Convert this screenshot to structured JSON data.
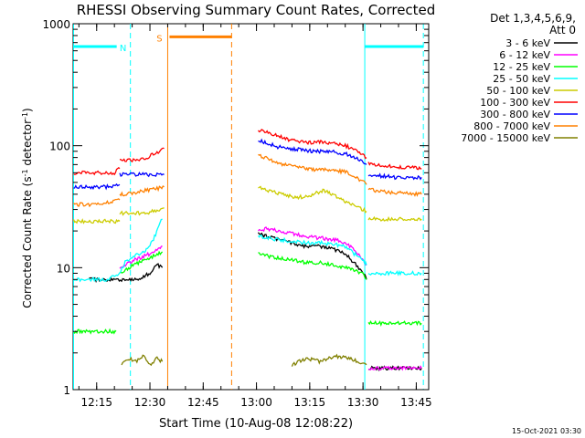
{
  "chart_data": {
    "type": "line",
    "title": "RHESSI Observing Summary Count Rates, Corrected",
    "xlabel": "Start Time (10-Aug-08 12:08:22)",
    "ylabel_main": "Corrected Count Rate (s",
    "ylabel_sup1": "-1",
    "ylabel_mid": " detector",
    "ylabel_sup2": "-1",
    "ylabel_end": ")",
    "y_scale": "log",
    "ylim": [
      1,
      1000
    ],
    "x_start_minutes": 8.37,
    "x_end_minutes": 108.5,
    "x_ticks": [
      {
        "minutes": 15,
        "label": "12:15"
      },
      {
        "minutes": 30,
        "label": "12:30"
      },
      {
        "minutes": 45,
        "label": "12:45"
      },
      {
        "minutes": 60,
        "label": "13:00"
      },
      {
        "minutes": 75,
        "label": "13:15"
      },
      {
        "minutes": 90,
        "label": "13:30"
      },
      {
        "minutes": 105,
        "label": "13:45"
      }
    ],
    "y_ticks": [
      {
        "value": 1,
        "label": "1"
      },
      {
        "value": 10,
        "label": "10"
      },
      {
        "value": 100,
        "label": "100"
      },
      {
        "value": 1000,
        "label": "1000"
      }
    ],
    "legend": {
      "header1": "Det 1,3,4,5,6,9,",
      "header2": "Att 0",
      "placement": "right"
    },
    "series": [
      {
        "name": "3 - 6 keV",
        "color": "#000000",
        "segments": [
          {
            "x": [
              12.9,
              13.5,
              14.5,
              15.5,
              17.0,
              18.5,
              22.0,
              24.0,
              27.0,
              30.0,
              32.0,
              33.5
            ],
            "y": [
              8.0,
              8.0,
              8.0,
              8.0,
              8.0,
              8.0,
              8.0,
              8.0,
              8.0,
              9.0,
              10.5,
              10.0
            ]
          },
          {
            "x": [
              60.5,
              63.0,
              66.0,
              70.0,
              74.0,
              78.0,
              82.0,
              85.0,
              87.5,
              89.5,
              90.5,
              91.0
            ],
            "y": [
              19.0,
              18.0,
              17.0,
              16.0,
              15.0,
              15.0,
              14.0,
              13.0,
              11.0,
              9.5,
              9.0,
              8.0
            ]
          },
          {
            "x": [
              91.5,
              93.5,
              96.0,
              99.0,
              102.0,
              104.0,
              106.5
            ],
            "y": [
              1.5,
              1.5,
              1.5,
              1.5,
              1.5,
              1.5,
              1.5
            ]
          }
        ]
      },
      {
        "name": "6 - 12 keV",
        "color": "#ff00ff",
        "segments": [
          {
            "x": [
              21.5,
              24.0,
              27.0,
              30.0,
              32.0,
              33.5
            ],
            "y": [
              10.0,
              11.0,
              12.0,
              13.0,
              14.0,
              15.0
            ]
          },
          {
            "x": [
              60.5,
              63.0,
              66.0,
              70.0,
              74.0,
              78.0,
              82.0,
              85.0,
              87.5,
              89.5,
              90.5,
              91.0
            ],
            "y": [
              20.0,
              21.0,
              20.0,
              19.0,
              18.0,
              17.5,
              17.0,
              16.0,
              14.0,
              12.0,
              11.0,
              10.5
            ]
          },
          {
            "x": [
              91.5,
              93.5,
              96.0,
              99.0,
              102.0,
              104.0,
              106.5
            ],
            "y": [
              1.5,
              1.5,
              1.5,
              1.5,
              1.5,
              1.5,
              1.5
            ]
          }
        ]
      },
      {
        "name": "12 - 25 keV",
        "color": "#00ff00",
        "segments": [
          {
            "x": [
              8.5,
              10.0,
              11.5,
              13.0,
              14.5,
              16.0,
              17.5,
              19.0,
              20.5
            ],
            "y": [
              3.0,
              3.0,
              3.0,
              3.0,
              3.0,
              3.0,
              3.0,
              3.0,
              3.0
            ]
          },
          {
            "x": [
              21.5,
              24.0,
              27.0,
              30.0,
              32.0,
              33.5
            ],
            "y": [
              9.0,
              10.0,
              11.0,
              12.0,
              13.0,
              13.5
            ]
          },
          {
            "x": [
              60.5,
              63.0,
              66.0,
              70.0,
              74.0,
              78.0,
              82.0,
              85.0,
              87.5,
              89.5,
              90.5,
              91.0
            ],
            "y": [
              13.0,
              12.5,
              12.0,
              11.5,
              11.0,
              11.0,
              10.5,
              10.0,
              9.5,
              9.0,
              8.5,
              8.0
            ]
          },
          {
            "x": [
              91.5,
              93.5,
              96.0,
              99.0,
              102.0,
              104.0,
              106.5
            ],
            "y": [
              3.5,
              3.5,
              3.5,
              3.5,
              3.5,
              3.5,
              3.5
            ]
          }
        ]
      },
      {
        "name": "25 - 50 keV",
        "color": "#00ffff",
        "segments": [
          {
            "x": [
              8.5,
              10.0,
              12.0,
              14.0,
              16.0,
              18.0,
              20.0,
              21.5,
              23.0,
              25.0,
              27.0,
              29.0,
              31.0,
              32.5,
              33.5
            ],
            "y": [
              8.0,
              8.0,
              8.0,
              8.0,
              8.0,
              8.0,
              8.5,
              9.0,
              11.0,
              12.0,
              13.0,
              14.0,
              17.0,
              22.0,
              25.0
            ]
          },
          {
            "x": [
              60.5,
              63.0,
              66.0,
              70.0,
              74.0,
              78.0,
              82.0,
              85.0,
              87.5,
              89.5,
              90.5,
              91.0
            ],
            "y": [
              18.0,
              17.5,
              17.0,
              16.5,
              16.0,
              16.0,
              15.5,
              15.0,
              13.0,
              12.0,
              11.0,
              10.5
            ]
          },
          {
            "x": [
              91.5,
              93.5,
              96.0,
              99.0,
              102.0,
              104.0,
              106.5
            ],
            "y": [
              9.0,
              9.0,
              9.0,
              9.0,
              9.0,
              9.0,
              9.0
            ]
          }
        ]
      },
      {
        "name": "50 - 100 keV",
        "color": "#cccc00",
        "segments": [
          {
            "x": [
              8.5,
              10.0,
              12.0,
              14.0,
              16.0,
              18.0,
              20.0,
              21.5
            ],
            "y": [
              24.0,
              24.0,
              24.0,
              24.0,
              24.0,
              24.0,
              24.0,
              24.0
            ]
          },
          {
            "x": [
              21.5,
              23.0,
              25.0,
              27.0,
              29.0,
              31.0,
              33.0,
              34.0
            ],
            "y": [
              28.0,
              28.0,
              28.0,
              28.0,
              28.0,
              29.0,
              30.0,
              31.0
            ]
          },
          {
            "x": [
              60.5,
              63.0,
              66.0,
              70.0,
              73.0,
              76.0,
              79.0,
              82.0,
              85.0,
              87.0,
              89.0,
              91.0
            ],
            "y": [
              46.0,
              43.0,
              41.0,
              38.0,
              38.0,
              40.0,
              43.0,
              39.0,
              35.0,
              33.0,
              31.0,
              29.0
            ]
          },
          {
            "x": [
              91.5,
              93.5,
              96.0,
              99.0,
              102.0,
              104.0,
              106.5
            ],
            "y": [
              25.0,
              25.0,
              25.0,
              25.0,
              25.0,
              25.0,
              25.0
            ]
          }
        ]
      },
      {
        "name": "100 - 300 keV",
        "color": "#ff0000",
        "segments": [
          {
            "x": [
              8.5,
              10.0,
              12.0,
              14.0,
              16.0,
              18.0,
              20.0,
              21.5
            ],
            "y": [
              60.0,
              60.0,
              60.0,
              60.0,
              60.0,
              60.0,
              60.0,
              65.0
            ]
          },
          {
            "x": [
              21.5,
              23.0,
              25.0,
              27.0,
              29.0,
              31.0,
              33.0,
              34.0
            ],
            "y": [
              75.0,
              75.0,
              76.0,
              78.0,
              80.0,
              85.0,
              90.0,
              95.0
            ]
          },
          {
            "x": [
              60.5,
              63.0,
              66.0,
              70.0,
              73.0,
              76.0,
              79.0,
              82.0,
              85.0,
              87.0,
              89.0,
              91.0
            ],
            "y": [
              135.0,
              130.0,
              120.0,
              110.0,
              108.0,
              105.0,
              108.0,
              104.0,
              100.0,
              95.0,
              88.0,
              80.0
            ]
          },
          {
            "x": [
              91.5,
              93.5,
              96.0,
              99.0,
              102.0,
              104.0,
              106.5
            ],
            "y": [
              72.0,
              70.0,
              68.0,
              67.0,
              66.0,
              66.0,
              65.0
            ]
          }
        ]
      },
      {
        "name": "300 - 800 keV",
        "color": "#0000ff",
        "segments": [
          {
            "x": [
              8.5,
              10.0,
              12.0,
              14.0,
              16.0,
              18.0,
              20.0,
              21.5
            ],
            "y": [
              46.0,
              46.0,
              46.0,
              46.0,
              46.0,
              46.0,
              46.0,
              48.0
            ]
          },
          {
            "x": [
              21.5,
              23.0,
              25.0,
              27.0,
              29.0,
              31.0,
              33.0,
              34.0
            ],
            "y": [
              58.0,
              58.0,
              58.0,
              58.0,
              58.0,
              58.0,
              58.0,
              58.0
            ]
          },
          {
            "x": [
              60.5,
              63.0,
              66.0,
              70.0,
              73.0,
              76.0,
              79.0,
              82.0,
              85.0,
              87.0,
              89.0,
              91.0
            ],
            "y": [
              110.0,
              105.0,
              98.0,
              94.0,
              92.0,
              90.0,
              90.0,
              89.0,
              86.0,
              82.0,
              76.0,
              70.0
            ]
          },
          {
            "x": [
              91.5,
              93.5,
              96.0,
              99.0,
              102.0,
              104.0,
              106.5
            ],
            "y": [
              58.0,
              57.0,
              56.0,
              55.0,
              55.0,
              55.0,
              55.0
            ]
          }
        ]
      },
      {
        "name": "800 - 7000 keV",
        "color": "#ff8000",
        "segments": [
          {
            "x": [
              8.5,
              10.0,
              12.0,
              14.0,
              16.0,
              18.0,
              20.0,
              21.5
            ],
            "y": [
              33.0,
              33.0,
              33.0,
              33.0,
              33.0,
              34.0,
              35.0,
              36.0
            ]
          },
          {
            "x": [
              21.5,
              23.0,
              25.0,
              27.0,
              29.0,
              31.0,
              33.0,
              34.0
            ],
            "y": [
              40.0,
              40.0,
              41.0,
              42.0,
              43.0,
              44.0,
              45.0,
              46.0
            ]
          },
          {
            "x": [
              60.5,
              63.0,
              66.0,
              70.0,
              73.0,
              76.0,
              79.0,
              82.0,
              85.0,
              87.0,
              89.0,
              91.0
            ],
            "y": [
              85.0,
              78.0,
              72.0,
              68.0,
              66.0,
              64.0,
              64.0,
              63.0,
              61.0,
              58.0,
              53.0,
              48.0
            ]
          },
          {
            "x": [
              91.5,
              93.5,
              96.0,
              99.0,
              102.0,
              104.0,
              106.5
            ],
            "y": [
              44.0,
              43.0,
              42.0,
              41.0,
              41.0,
              40.0,
              40.0
            ]
          }
        ]
      },
      {
        "name": "7000 - 15000 keV",
        "color": "#808000",
        "segments": [
          {
            "x": [
              22.0,
              24.0,
              26.0,
              28.0,
              30.0,
              32.0,
              33.5
            ],
            "y": [
              1.6,
              1.8,
              1.7,
              1.9,
              1.6,
              1.8,
              1.7
            ]
          },
          {
            "x": [
              70.0,
              74.0,
              78.0,
              82.0,
              86.0,
              89.0,
              91.0
            ],
            "y": [
              1.6,
              1.8,
              1.7,
              1.9,
              1.8,
              1.7,
              1.6
            ]
          }
        ]
      }
    ],
    "markers": [
      {
        "type": "night",
        "color": "#00ffff",
        "label": "N",
        "start": 8.5,
        "end": 24.5,
        "level": 650,
        "dashed_start": false,
        "dashed_end": true
      },
      {
        "type": "night",
        "color": "#00ffff",
        "label": "",
        "start": 90.5,
        "end": 107.0,
        "level": 650,
        "dashed_start": false,
        "dashed_end": true
      },
      {
        "type": "saa",
        "color": "#ff8000",
        "label": "S",
        "start": 35.0,
        "end": 53.0,
        "level": 780,
        "dashed_start": false,
        "dashed_end": true
      }
    ],
    "timestamp": "15-Oct-2021 03:30"
  }
}
